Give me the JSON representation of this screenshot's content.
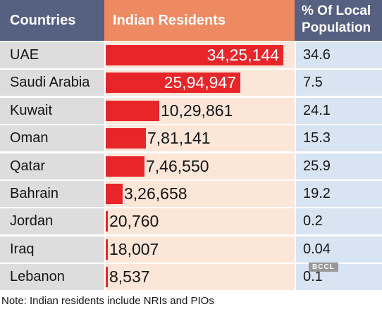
{
  "header": {
    "countries": "Countries",
    "residents": "Indian Residents",
    "pct_line1": "% Of Local",
    "pct_line2": "Population"
  },
  "chart_data": {
    "type": "table",
    "columns": [
      "Countries",
      "Indian Residents",
      "% Of Local Population"
    ],
    "rows": [
      {
        "country": "UAE",
        "residents": 3425144,
        "residents_label": "34,25,144",
        "pct": "34.6"
      },
      {
        "country": "Saudi Arabia",
        "residents": 2594947,
        "residents_label": "25,94,947",
        "pct": "7.5"
      },
      {
        "country": "Kuwait",
        "residents": 1029861,
        "residents_label": "10,29,861",
        "pct": "24.1"
      },
      {
        "country": "Oman",
        "residents": 781141,
        "residents_label": "7,81,141",
        "pct": "15.3"
      },
      {
        "country": "Qatar",
        "residents": 746550,
        "residents_label": "7,46,550",
        "pct": "25.9"
      },
      {
        "country": "Bahrain",
        "residents": 326658,
        "residents_label": "3,26,658",
        "pct": "19.2"
      },
      {
        "country": "Jordan",
        "residents": 20760,
        "residents_label": "20,760",
        "pct": "0.2"
      },
      {
        "country": "Iraq",
        "residents": 18007,
        "residents_label": "18,007",
        "pct": "0.04"
      },
      {
        "country": "Lebanon",
        "residents": 8537,
        "residents_label": "8,537",
        "pct": "0.1"
      }
    ],
    "bar_color": "#e8262a"
  },
  "watermark": "BCCL",
  "note": "Note: Indian residents include NRIs and PIOs",
  "colors": {
    "header_blue": "#566080",
    "header_orange": "#ee8a62",
    "country_bg": "#dddddd",
    "residents_bg": "#fbe6d8",
    "pct_bg": "#d9e4f2"
  }
}
